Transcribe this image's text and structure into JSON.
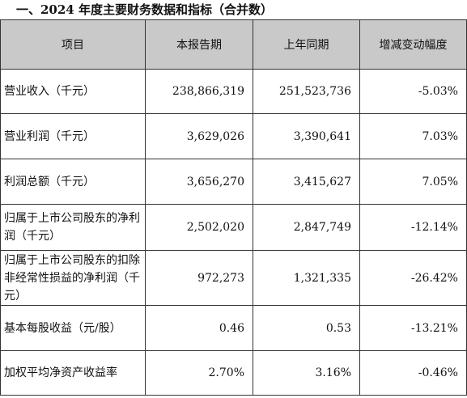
{
  "section_title": "一、2024 年度主要财务数据和指标（合并数）",
  "table": {
    "headers": [
      "项目",
      "本报告期",
      "上年同期",
      "增减变动幅度"
    ],
    "rows": [
      {
        "label": "营业收入（千元）",
        "current": "238,866,319",
        "prior": "251,523,736",
        "change": "-5.03%"
      },
      {
        "label": "营业利润（千元）",
        "current": "3,629,026",
        "prior": "3,390,641",
        "change": "7.03%"
      },
      {
        "label": "利润总额（千元）",
        "current": "3,656,270",
        "prior": "3,415,627",
        "change": "7.05%"
      },
      {
        "label": "归属于上市公司股东的净利润（千元）",
        "current": "2,502,020",
        "prior": "2,847,749",
        "change": "-12.14%"
      },
      {
        "label": "归属于上市公司股东的扣除非经常性损益的净利润（千元）",
        "current": "972,273",
        "prior": "1,321,335",
        "change": "-26.42%"
      },
      {
        "label": "基本每股收益（元/股）",
        "current": "0.46",
        "prior": "0.53",
        "change": "-13.21%"
      },
      {
        "label": "加权平均净资产收益率",
        "current": "2.70%",
        "prior": "3.16%",
        "change": "-0.46%"
      }
    ]
  }
}
